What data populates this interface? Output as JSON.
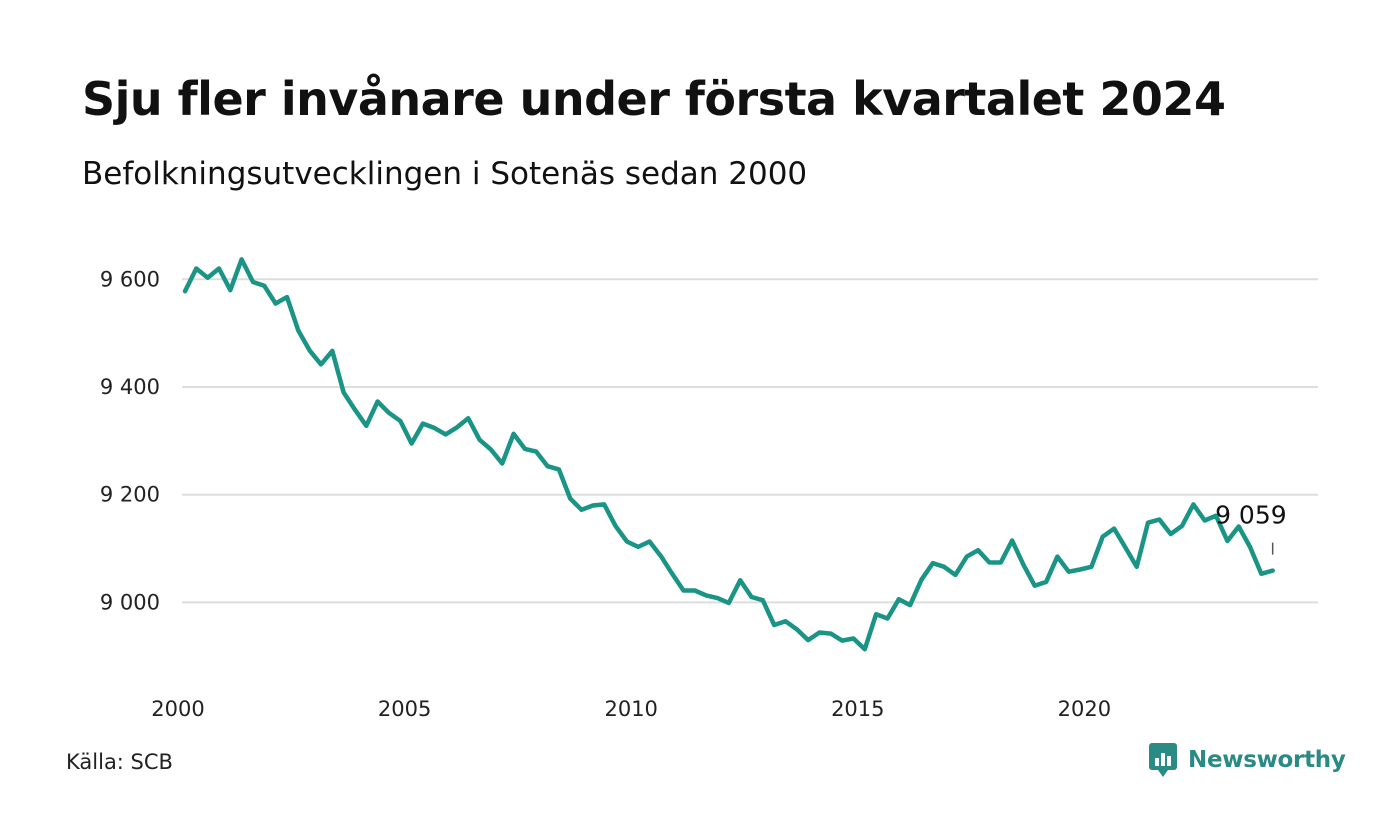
{
  "title": "Sju fler invånare under första kvartalet 2024",
  "subtitle": "Befolkningsutvecklingen i Sotenäs sedan 2000",
  "source": "Källa: SCB",
  "brand": "Newsworthy",
  "colors": {
    "line": "#1a9485",
    "grid": "#dddddd",
    "brand": "#2a8a84"
  },
  "chart_data": {
    "type": "line",
    "title": "",
    "xlabel": "",
    "ylabel": "",
    "xlim": [
      2000,
      2024.25
    ],
    "ylim": [
      8880,
      9660
    ],
    "grid": true,
    "y_ticks": [
      9000,
      9200,
      9400,
      9600
    ],
    "y_tick_labels": [
      "9 000",
      "9 200",
      "9 400",
      "9 600"
    ],
    "x_ticks": [
      2000,
      2005,
      2010,
      2015,
      2020
    ],
    "x_tick_labels": [
      "2000",
      "2005",
      "2010",
      "2015",
      "2020"
    ],
    "last_value_label": "9 059",
    "series": [
      {
        "x": [
          2000.0,
          2000.25,
          2000.5,
          2000.75,
          2001.0,
          2001.25,
          2001.5,
          2001.75,
          2002.0,
          2002.25,
          2002.5,
          2002.75,
          2003.0,
          2003.25,
          2003.5,
          2003.75,
          2004.0,
          2004.25,
          2004.5,
          2004.75,
          2005.0,
          2005.25,
          2005.5,
          2005.75,
          2006.0,
          2006.25,
          2006.5,
          2006.75,
          2007.0,
          2007.25,
          2007.5,
          2007.75,
          2008.0,
          2008.25,
          2008.5,
          2008.75,
          2009.0,
          2009.25,
          2009.5,
          2009.75,
          2010.0,
          2010.25,
          2010.5,
          2010.75,
          2011.0,
          2011.25,
          2011.5,
          2011.75,
          2012.0,
          2012.25,
          2012.5,
          2012.75,
          2013.0,
          2013.25,
          2013.5,
          2013.75,
          2014.0,
          2014.25,
          2014.5,
          2014.75,
          2015.0,
          2015.25,
          2015.5,
          2015.75,
          2016.0,
          2016.25,
          2016.5,
          2016.75,
          2017.0,
          2017.25,
          2017.5,
          2017.75,
          2018.0,
          2018.25,
          2018.5,
          2018.75,
          2019.0,
          2019.25,
          2019.5,
          2019.75,
          2020.0,
          2020.25,
          2020.5,
          2020.75,
          2021.0,
          2021.25,
          2021.5,
          2021.75,
          2022.0,
          2022.25,
          2022.5,
          2022.75,
          2023.0,
          2023.25,
          2023.5,
          2023.75,
          2024.0
        ],
        "values": [
          9578,
          9620,
          9603,
          9620,
          9580,
          9637,
          9595,
          9588,
          9555,
          9567,
          9505,
          9468,
          9442,
          9467,
          9390,
          9358,
          9328,
          9373,
          9352,
          9337,
          9295,
          9332,
          9324,
          9312,
          9325,
          9342,
          9302,
          9284,
          9258,
          9313,
          9285,
          9280,
          9253,
          9247,
          9193,
          9172,
          9180,
          9182,
          9142,
          9113,
          9103,
          9113,
          9086,
          9053,
          9022,
          9022,
          9013,
          9008,
          8999,
          9041,
          9010,
          9004,
          8958,
          8965,
          8950,
          8930,
          8944,
          8942,
          8929,
          8933,
          8913,
          8978,
          8970,
          9006,
          8995,
          9042,
          9073,
          9066,
          9051,
          9085,
          9097,
          9074,
          9074,
          9115,
          9070,
          9031,
          9038,
          9085,
          9057,
          9061,
          9066,
          9122,
          9137,
          9102,
          9066,
          9148,
          9154,
          9127,
          9142,
          9182,
          9152,
          9161,
          9114,
          9141,
          9103,
          9053,
          9059
        ]
      }
    ]
  }
}
